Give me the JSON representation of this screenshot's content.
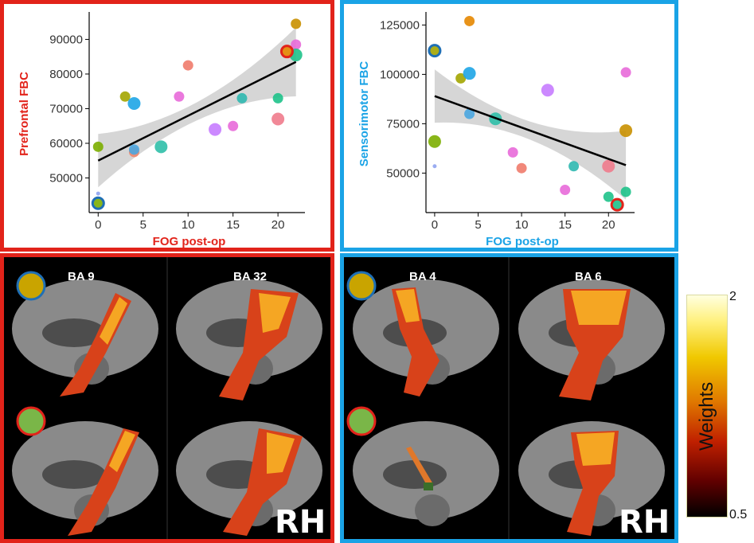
{
  "chart_data": [
    {
      "type": "scatter",
      "xlabel": "FOG post-op",
      "ylabel": "Prefrontal FBC",
      "xticks": [
        "0",
        "5",
        "10",
        "15",
        "20"
      ],
      "yticks": [
        "50000",
        "60000",
        "70000",
        "80000",
        "90000"
      ],
      "xlim": [
        -1,
        23
      ],
      "ylim": [
        40000,
        97000
      ],
      "fit_line": {
        "x": [
          0,
          22
        ],
        "y": [
          55000,
          83500
        ]
      },
      "points": [
        {
          "x": 0,
          "y": 42700,
          "color": "#7cae00",
          "highlight": "#1f6fb5"
        },
        {
          "x": 0,
          "y": 45500,
          "color": "#8fa3f0"
        },
        {
          "x": 0,
          "y": 59000,
          "color": "#7cae00"
        },
        {
          "x": 3,
          "y": 73500,
          "color": "#a3a500"
        },
        {
          "x": 4,
          "y": 71500,
          "color": "#1ea5e6"
        },
        {
          "x": 4,
          "y": 57500,
          "color": "#f0866b"
        },
        {
          "x": 4,
          "y": 58200,
          "color": "#4aa6e0"
        },
        {
          "x": 7,
          "y": 59000,
          "color": "#2fbfa8"
        },
        {
          "x": 9,
          "y": 73500,
          "color": "#e86ad9"
        },
        {
          "x": 10,
          "y": 82500,
          "color": "#f07b6b"
        },
        {
          "x": 13,
          "y": 64000,
          "color": "#c77cff"
        },
        {
          "x": 15,
          "y": 65000,
          "color": "#e86ad9"
        },
        {
          "x": 16,
          "y": 73000,
          "color": "#2fb8b0"
        },
        {
          "x": 20,
          "y": 67000,
          "color": "#f07b8c"
        },
        {
          "x": 20,
          "y": 73000,
          "color": "#1ec28a"
        },
        {
          "x": 21,
          "y": 86500,
          "color": "#e58700",
          "highlight": "#e2231a"
        },
        {
          "x": 22,
          "y": 88500,
          "color": "#e86ad9"
        },
        {
          "x": 22,
          "y": 85500,
          "color": "#1ec28a"
        },
        {
          "x": 22,
          "y": 94500,
          "color": "#c99000"
        }
      ]
    },
    {
      "type": "scatter",
      "xlabel": "FOG post-op",
      "ylabel": "Sensorimotor FBC",
      "xticks": [
        "0",
        "5",
        "10",
        "15",
        "20"
      ],
      "yticks": [
        "50000",
        "75000",
        "100000",
        "125000"
      ],
      "xlim": [
        -1,
        23
      ],
      "ylim": [
        30000,
        130000
      ],
      "fit_line": {
        "x": [
          0,
          22
        ],
        "y": [
          89000,
          54000
        ]
      },
      "points": [
        {
          "x": 0,
          "y": 112000,
          "color": "#a3a500",
          "highlight": "#1f6fb5"
        },
        {
          "x": 0,
          "y": 66000,
          "color": "#7cae00"
        },
        {
          "x": 0,
          "y": 53500,
          "color": "#8fa3f0"
        },
        {
          "x": 3,
          "y": 98000,
          "color": "#a3a500"
        },
        {
          "x": 4,
          "y": 100500,
          "color": "#1ea5e6"
        },
        {
          "x": 4,
          "y": 80000,
          "color": "#4aa6e0"
        },
        {
          "x": 4,
          "y": 127000,
          "color": "#e58700"
        },
        {
          "x": 7,
          "y": 77500,
          "color": "#2fbfa8"
        },
        {
          "x": 9,
          "y": 60500,
          "color": "#e86ad9"
        },
        {
          "x": 10,
          "y": 52500,
          "color": "#f07b6b"
        },
        {
          "x": 13,
          "y": 92000,
          "color": "#c77cff"
        },
        {
          "x": 15,
          "y": 41500,
          "color": "#e86ad9"
        },
        {
          "x": 16,
          "y": 53500,
          "color": "#2fb8b0"
        },
        {
          "x": 20,
          "y": 53500,
          "color": "#f07b8c"
        },
        {
          "x": 20,
          "y": 38000,
          "color": "#1ec28a"
        },
        {
          "x": 21,
          "y": 34000,
          "color": "#1ec28a",
          "highlight": "#e2231a"
        },
        {
          "x": 22,
          "y": 101000,
          "color": "#e86ad9"
        },
        {
          "x": 22,
          "y": 71500,
          "color": "#c99000"
        },
        {
          "x": 22,
          "y": 40500,
          "color": "#1ec28a"
        }
      ]
    }
  ],
  "brains": {
    "left": {
      "labels": [
        "BA 9",
        "BA 32"
      ],
      "hemisphere": "RH"
    },
    "right": {
      "labels": [
        "BA 4",
        "BA 6"
      ],
      "hemisphere": "RH"
    }
  },
  "colorbar": {
    "title": "Weights",
    "max": "2",
    "min": "0.5"
  },
  "colors": {
    "frame_left": "#e2231a",
    "frame_right": "#1aa3e6",
    "legend_dot_top": "#c9a400",
    "legend_dot_bottom": "#7ab648"
  }
}
